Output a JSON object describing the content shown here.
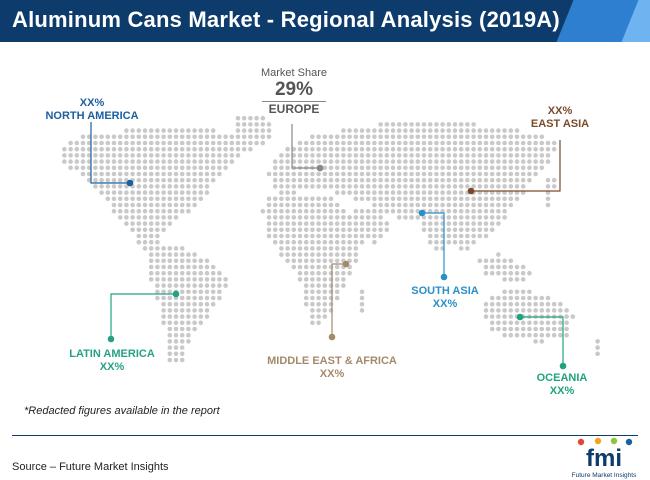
{
  "title": "Aluminum Cans Market - Regional Analysis (2019A)",
  "highlight": {
    "caption": "Market Share",
    "value": "29%",
    "region": "EUROPE"
  },
  "regions": {
    "north_america": {
      "name": "NORTH AMERICA",
      "value": "XX%",
      "color": "#1a5fa0"
    },
    "europe": {
      "name": "EUROPE",
      "value": "29%",
      "color": "#888888"
    },
    "east_asia": {
      "name": "EAST ASIA",
      "value": "XX%",
      "color": "#7a4a2a"
    },
    "south_asia": {
      "name": "SOUTH ASIA",
      "value": "XX%",
      "color": "#2b8fc9"
    },
    "latin_america": {
      "name": "LATIN AMERICA",
      "value": "XX%",
      "color": "#26a186"
    },
    "middle_east_africa": {
      "name": "MIDDLE EAST & AFRICA",
      "value": "XX%",
      "color": "#a5896a"
    },
    "oceania": {
      "name": "OCEANIA",
      "value": "XX%",
      "color": "#1fa37e"
    }
  },
  "note": "*Redacted figures available in the report",
  "source": "Source – Future Market Insights",
  "logo": {
    "mark": "fmi",
    "tagline": "Future Market Insights",
    "colors": [
      "#e2472f",
      "#f7a21b",
      "#8cc63f",
      "#1a5fa0"
    ]
  }
}
